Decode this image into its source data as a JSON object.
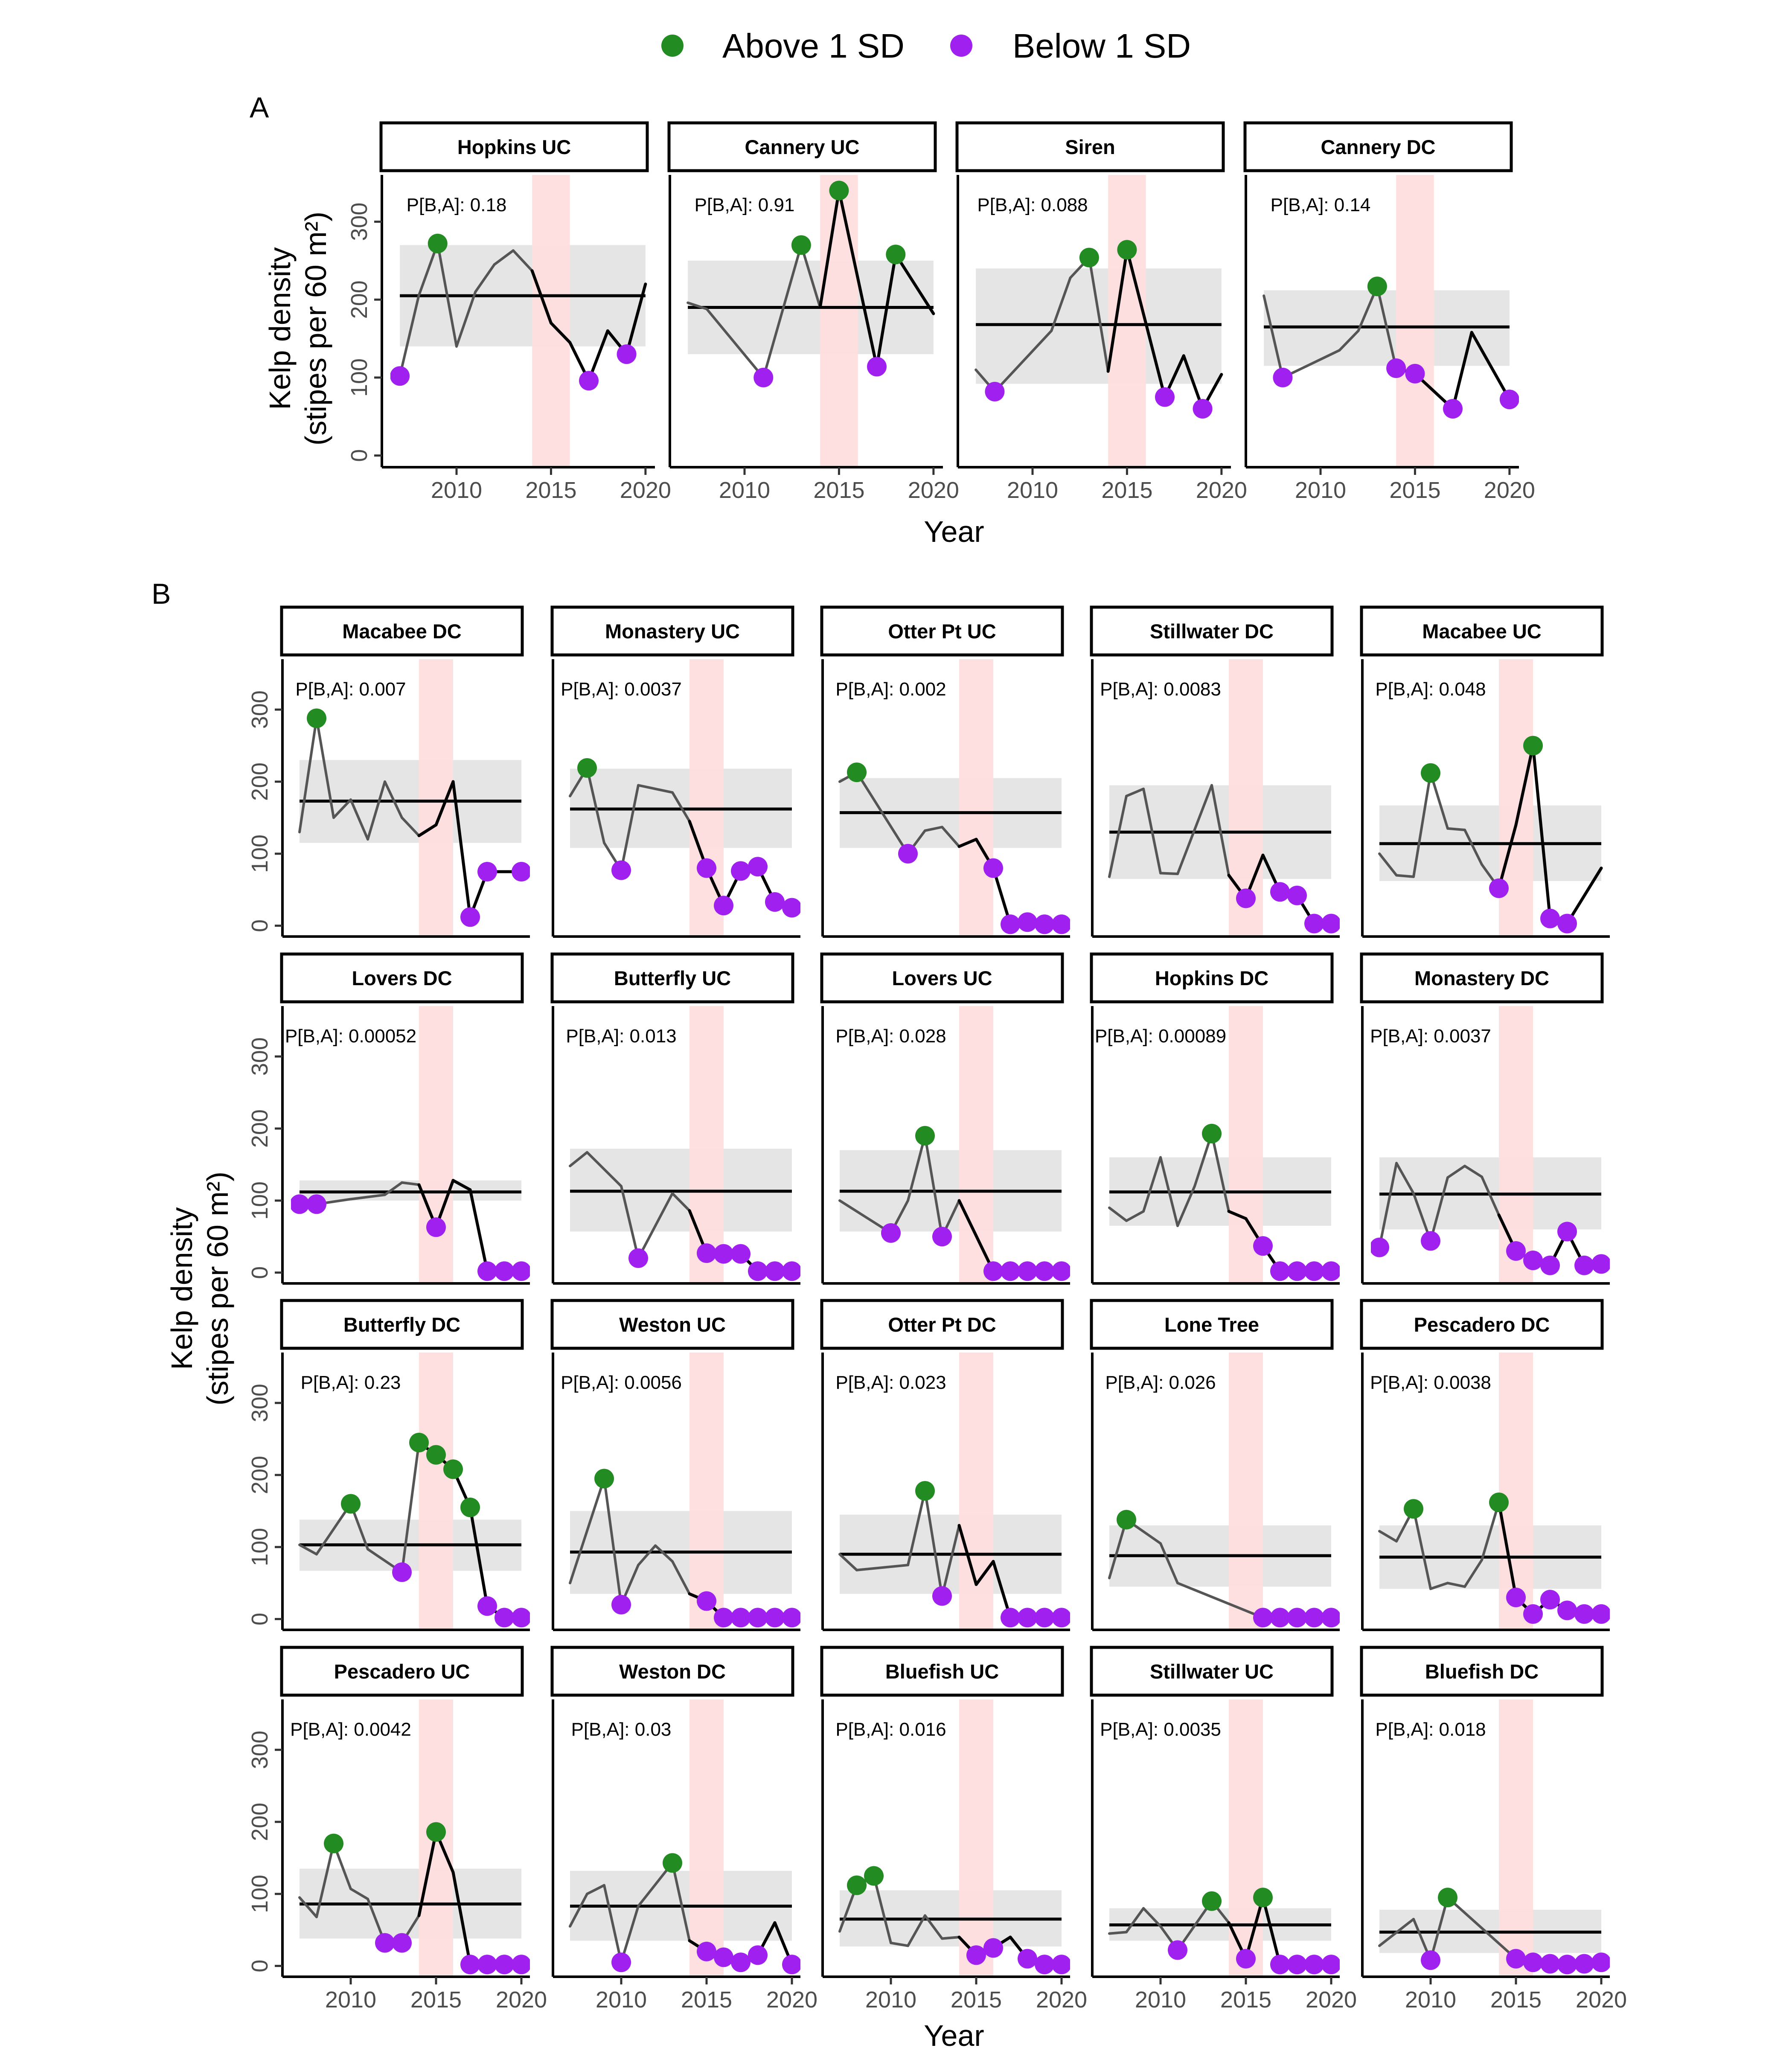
{
  "legend": {
    "above_label": "Above 1 SD",
    "below_label": "Below 1 SD",
    "above_color": "#228b22",
    "below_color": "#a020f0"
  },
  "colors": {
    "mean_line": "#000000",
    "sd_band": "#e5e5e5",
    "heatwave_band": "#ffdede",
    "series_line": "#555555"
  },
  "panels": [
    {
      "tag": "A",
      "xlabel": "Year",
      "ylabel_line1": "Kelp density",
      "ylabel_line2": "(stipes per 60 m²)"
    },
    {
      "tag": "B",
      "xlabel": "Year",
      "ylabel_line1": "Kelp density",
      "ylabel_line2": "(stipes per 60 m²)"
    }
  ],
  "chart_data": [
    {
      "type": "line",
      "panel": "A",
      "xlim": [
        2006.5,
        2020.5
      ],
      "ylim": [
        -15,
        360
      ],
      "x_ticks": [
        2010,
        2015,
        2020
      ],
      "y_ticks": [
        0,
        100,
        200,
        300
      ],
      "heatwave_years": [
        2014,
        2016
      ],
      "facets": [
        {
          "name": "Hopkins UC",
          "pba": "P[B,A]: 0.18",
          "mean": 205,
          "sd_low": 140,
          "sd_high": 270,
          "years": [
            2007,
            2008,
            2009,
            2010,
            2011,
            2012,
            2013,
            2014,
            2015,
            2016,
            2017,
            2018,
            2019,
            2020
          ],
          "values": [
            102,
            205,
            272,
            140,
            210,
            245,
            263,
            237,
            170,
            145,
            96,
            160,
            130,
            220
          ]
        },
        {
          "name": "Cannery UC",
          "pba": "P[B,A]: 0.91",
          "mean": 190,
          "sd_low": 130,
          "sd_high": 250,
          "years": [
            2007,
            2008,
            2011,
            2013,
            2014,
            2015,
            2017,
            2018,
            2020
          ],
          "values": [
            196,
            188,
            100,
            270,
            190,
            340,
            114,
            258,
            182
          ]
        },
        {
          "name": "Siren",
          "pba": "P[B,A]: 0.088",
          "mean": 168,
          "sd_low": 92,
          "sd_high": 240,
          "years": [
            2007,
            2008,
            2011,
            2012,
            2013,
            2014,
            2015,
            2017,
            2018,
            2019,
            2020
          ],
          "values": [
            110,
            82,
            160,
            228,
            254,
            108,
            264,
            75,
            128,
            60,
            104
          ]
        },
        {
          "name": "Cannery DC",
          "pba": "P[B,A]: 0.14",
          "mean": 165,
          "sd_low": 115,
          "sd_high": 212,
          "years": [
            2007,
            2008,
            2011,
            2012,
            2013,
            2014,
            2015,
            2017,
            2018,
            2020
          ],
          "values": [
            205,
            100,
            135,
            160,
            217,
            112,
            105,
            60,
            158,
            72
          ]
        }
      ]
    },
    {
      "type": "line",
      "panel": "B",
      "xlim": [
        2006.5,
        2020.5
      ],
      "ylim": [
        -15,
        370
      ],
      "x_ticks": [
        2010,
        2015,
        2020
      ],
      "y_ticks": [
        0,
        100,
        200,
        300
      ],
      "heatwave_years": [
        2014,
        2016
      ],
      "facets": [
        {
          "name": "Macabee DC",
          "pba": "P[B,A]: 0.007",
          "mean": 173,
          "sd_low": 115,
          "sd_high": 230,
          "years": [
            2007,
            2008,
            2009,
            2010,
            2011,
            2012,
            2013,
            2014,
            2015,
            2016,
            2017,
            2018,
            2020
          ],
          "values": [
            130,
            288,
            150,
            175,
            120,
            200,
            150,
            125,
            140,
            200,
            12,
            75,
            75
          ]
        },
        {
          "name": "Monastery UC",
          "pba": "P[B,A]: 0.0037",
          "mean": 162,
          "sd_low": 108,
          "sd_high": 218,
          "years": [
            2007,
            2008,
            2009,
            2010,
            2011,
            2012,
            2013,
            2014,
            2015,
            2016,
            2017,
            2018,
            2019,
            2020
          ],
          "values": [
            180,
            219,
            115,
            77,
            195,
            190,
            185,
            145,
            80,
            28,
            76,
            82,
            33,
            25
          ]
        },
        {
          "name": "Otter Pt UC",
          "pba": "P[B,A]: 0.002",
          "mean": 157,
          "sd_low": 108,
          "sd_high": 205,
          "years": [
            2007,
            2008,
            2011,
            2012,
            2013,
            2014,
            2015,
            2016,
            2017,
            2018,
            2019,
            2020
          ],
          "values": [
            200,
            213,
            100,
            132,
            137,
            110,
            120,
            80,
            2,
            5,
            2,
            2
          ]
        },
        {
          "name": "Stillwater DC",
          "pba": "P[B,A]: 0.0083",
          "mean": 130,
          "sd_low": 65,
          "sd_high": 195,
          "years": [
            2007,
            2008,
            2009,
            2010,
            2011,
            2013,
            2014,
            2015,
            2016,
            2017,
            2018,
            2019,
            2020
          ],
          "values": [
            68,
            180,
            190,
            73,
            72,
            195,
            70,
            38,
            98,
            47,
            42,
            3,
            3
          ]
        },
        {
          "name": "Macabee UC",
          "pba": "P[B,A]: 0.048",
          "mean": 114,
          "sd_low": 62,
          "sd_high": 167,
          "years": [
            2007,
            2008,
            2009,
            2010,
            2011,
            2012,
            2013,
            2014,
            2015,
            2016,
            2017,
            2018,
            2020
          ],
          "values": [
            100,
            70,
            68,
            212,
            135,
            133,
            85,
            52,
            140,
            250,
            10,
            3,
            80
          ]
        },
        {
          "name": "Lovers DC",
          "pba": "P[B,A]: 0.00052",
          "mean": 112,
          "sd_low": 100,
          "sd_high": 128,
          "years": [
            2007,
            2008,
            2010,
            2012,
            2013,
            2014,
            2015,
            2016,
            2017,
            2018,
            2019,
            2020
          ],
          "values": [
            95,
            95,
            102,
            108,
            125,
            122,
            63,
            128,
            115,
            2,
            2,
            2
          ]
        },
        {
          "name": "Butterfly UC",
          "pba": "P[B,A]: 0.013",
          "mean": 113,
          "sd_low": 57,
          "sd_high": 172,
          "years": [
            2007,
            2008,
            2010,
            2011,
            2013,
            2014,
            2015,
            2016,
            2017,
            2018,
            2019,
            2020
          ],
          "values": [
            148,
            167,
            120,
            20,
            110,
            86,
            27,
            26,
            26,
            2,
            2,
            2
          ]
        },
        {
          "name": "Lovers UC",
          "pba": "P[B,A]: 0.028",
          "mean": 113,
          "sd_low": 57,
          "sd_high": 170,
          "years": [
            2007,
            2010,
            2011,
            2012,
            2013,
            2014,
            2016,
            2017,
            2018,
            2019,
            2020
          ],
          "values": [
            100,
            55,
            100,
            190,
            50,
            100,
            2,
            2,
            2,
            2,
            2
          ]
        },
        {
          "name": "Hopkins DC",
          "pba": "P[B,A]: 0.00089",
          "mean": 112,
          "sd_low": 65,
          "sd_high": 160,
          "years": [
            2007,
            2008,
            2009,
            2010,
            2011,
            2012,
            2013,
            2014,
            2015,
            2016,
            2017,
            2018,
            2019,
            2020
          ],
          "values": [
            90,
            72,
            85,
            160,
            65,
            120,
            193,
            85,
            75,
            37,
            2,
            2,
            2,
            2
          ]
        },
        {
          "name": "Monastery DC",
          "pba": "P[B,A]: 0.0037",
          "mean": 109,
          "sd_low": 60,
          "sd_high": 160,
          "years": [
            2007,
            2008,
            2009,
            2010,
            2011,
            2012,
            2013,
            2014,
            2015,
            2016,
            2017,
            2018,
            2019,
            2020
          ],
          "values": [
            35,
            152,
            110,
            44,
            132,
            148,
            133,
            80,
            30,
            17,
            10,
            57,
            10,
            12
          ]
        },
        {
          "name": "Butterfly DC",
          "pba": "P[B,A]: 0.23",
          "mean": 103,
          "sd_low": 67,
          "sd_high": 138,
          "years": [
            2007,
            2008,
            2010,
            2011,
            2013,
            2014,
            2015,
            2016,
            2017,
            2018,
            2019,
            2020
          ],
          "values": [
            103,
            90,
            160,
            97,
            65,
            245,
            228,
            208,
            155,
            18,
            2,
            2
          ]
        },
        {
          "name": "Weston UC",
          "pba": "P[B,A]: 0.0056",
          "mean": 93,
          "sd_low": 35,
          "sd_high": 150,
          "years": [
            2007,
            2009,
            2010,
            2011,
            2012,
            2013,
            2014,
            2015,
            2016,
            2017,
            2018,
            2019,
            2020
          ],
          "values": [
            50,
            195,
            20,
            75,
            102,
            80,
            35,
            25,
            2,
            2,
            2,
            2,
            2
          ]
        },
        {
          "name": "Otter Pt DC",
          "pba": "P[B,A]: 0.023",
          "mean": 90,
          "sd_low": 35,
          "sd_high": 145,
          "years": [
            2007,
            2008,
            2011,
            2012,
            2013,
            2014,
            2015,
            2016,
            2017,
            2018,
            2019,
            2020
          ],
          "values": [
            90,
            68,
            75,
            178,
            32,
            130,
            48,
            80,
            2,
            2,
            2,
            2
          ]
        },
        {
          "name": "Lone Tree",
          "pba": "P[B,A]: 0.026",
          "mean": 88,
          "sd_low": 45,
          "sd_high": 130,
          "years": [
            2007,
            2008,
            2010,
            2011,
            2016,
            2017,
            2018,
            2019,
            2020
          ],
          "values": [
            57,
            138,
            105,
            50,
            2,
            2,
            2,
            2,
            2
          ]
        },
        {
          "name": "Pescadero DC",
          "pba": "P[B,A]: 0.0038",
          "mean": 86,
          "sd_low": 42,
          "sd_high": 130,
          "years": [
            2007,
            2008,
            2009,
            2010,
            2011,
            2012,
            2013,
            2014,
            2015,
            2016,
            2017,
            2018,
            2019,
            2020
          ],
          "values": [
            122,
            108,
            153,
            42,
            50,
            45,
            82,
            162,
            30,
            7,
            27,
            12,
            7,
            7
          ]
        },
        {
          "name": "Pescadero UC",
          "pba": "P[B,A]: 0.0042",
          "mean": 86,
          "sd_low": 38,
          "sd_high": 135,
          "years": [
            2007,
            2008,
            2009,
            2010,
            2011,
            2012,
            2013,
            2014,
            2015,
            2016,
            2017,
            2018,
            2019,
            2020
          ],
          "values": [
            95,
            68,
            170,
            107,
            93,
            32,
            32,
            70,
            186,
            130,
            2,
            2,
            2,
            2
          ]
        },
        {
          "name": "Weston DC",
          "pba": "P[B,A]: 0.03",
          "mean": 83,
          "sd_low": 35,
          "sd_high": 132,
          "years": [
            2007,
            2008,
            2009,
            2010,
            2011,
            2013,
            2014,
            2015,
            2016,
            2017,
            2018,
            2019,
            2020
          ],
          "values": [
            55,
            100,
            112,
            5,
            83,
            143,
            35,
            20,
            12,
            5,
            15,
            60,
            2
          ]
        },
        {
          "name": "Bluefish UC",
          "pba": "P[B,A]: 0.016",
          "mean": 65,
          "sd_low": 27,
          "sd_high": 105,
          "years": [
            2007,
            2008,
            2009,
            2010,
            2011,
            2012,
            2013,
            2014,
            2015,
            2016,
            2017,
            2018,
            2019,
            2020
          ],
          "values": [
            48,
            112,
            125,
            32,
            28,
            70,
            38,
            40,
            15,
            25,
            40,
            10,
            2,
            2
          ]
        },
        {
          "name": "Stillwater UC",
          "pba": "P[B,A]: 0.0035",
          "mean": 57,
          "sd_low": 35,
          "sd_high": 80,
          "years": [
            2007,
            2008,
            2009,
            2010,
            2011,
            2013,
            2014,
            2015,
            2016,
            2017,
            2018,
            2019,
            2020
          ],
          "values": [
            45,
            47,
            80,
            55,
            22,
            90,
            60,
            10,
            95,
            2,
            2,
            2,
            2
          ]
        },
        {
          "name": "Bluefish DC",
          "pba": "P[B,A]: 0.018",
          "mean": 47,
          "sd_low": 18,
          "sd_high": 78,
          "years": [
            2007,
            2009,
            2010,
            2011,
            2015,
            2016,
            2017,
            2018,
            2019,
            2020
          ],
          "values": [
            28,
            65,
            8,
            95,
            10,
            5,
            3,
            2,
            3,
            5
          ]
        }
      ]
    }
  ]
}
